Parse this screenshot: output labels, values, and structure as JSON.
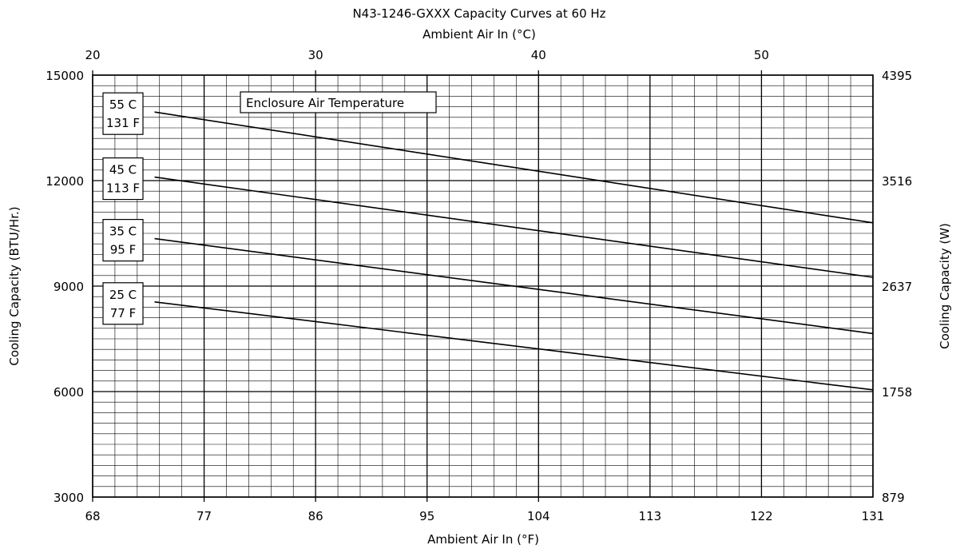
{
  "chart_data": {
    "type": "line",
    "title": "N43-1246-GXXX Capacity Curves at 60 Hz",
    "xlabel": "Ambient Air In (°F)",
    "ylabel": "Cooling Capacity (BTU/Hr.)",
    "x2label": "Ambient Air In (°C)",
    "y2label": "Cooling Capacity (W)",
    "xlim": [
      68,
      131
    ],
    "ylim": [
      3000,
      15000
    ],
    "x2lim": [
      20,
      55
    ],
    "x_ticks": [
      "68",
      "77",
      "86",
      "95",
      "104",
      "113",
      "122",
      "131"
    ],
    "y_ticks": [
      "3000",
      "6000",
      "9000",
      "12000",
      "15000"
    ],
    "x2_ticks": [
      "20",
      "30",
      "40",
      "50"
    ],
    "x2_tick_values": [
      20,
      30,
      40,
      50
    ],
    "y2_ticks": [
      "879",
      "1758",
      "2637",
      "3516",
      "4395"
    ],
    "grid": true,
    "annotation": "Enclosure Air Temperature",
    "series": [
      {
        "name": "55 C / 131 F",
        "label_lines": [
          "55 C",
          "131 F"
        ],
        "x": [
          73,
          131
        ],
        "y": [
          13950,
          10800
        ]
      },
      {
        "name": "45 C / 113 F",
        "label_lines": [
          "45 C",
          "113 F"
        ],
        "x": [
          73,
          131
        ],
        "y": [
          12100,
          9250
        ]
      },
      {
        "name": "35 C / 95 F",
        "label_lines": [
          "35 C",
          "95 F"
        ],
        "x": [
          73,
          131
        ],
        "y": [
          10350,
          7650
        ]
      },
      {
        "name": "25 C / 77 F",
        "label_lines": [
          "25 C",
          "77 F"
        ],
        "x": [
          73,
          131
        ],
        "y": [
          8550,
          6050
        ]
      }
    ]
  }
}
